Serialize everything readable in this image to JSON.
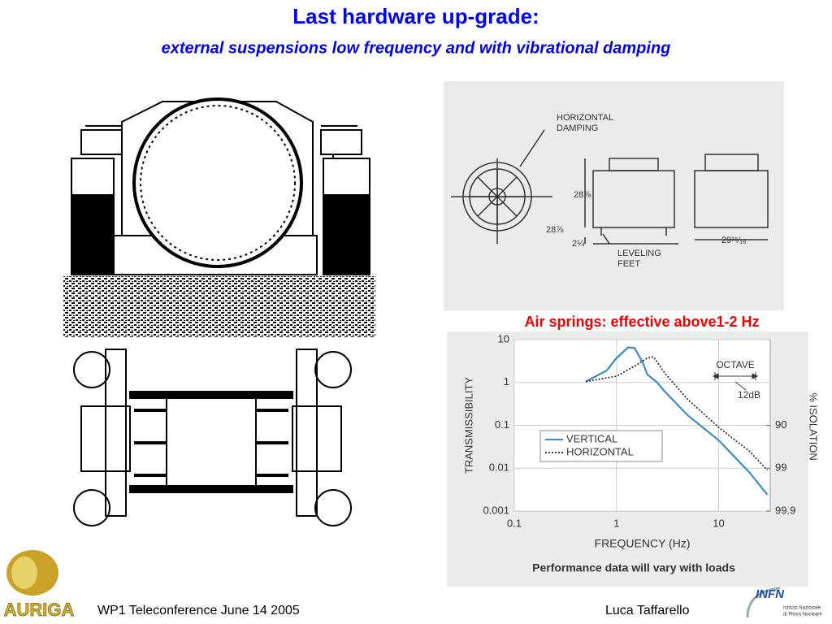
{
  "title": "Last hardware up-grade:",
  "subtitle": "external suspensions low frequency and with vibrational damping",
  "caption": "Air springs: effective above1-2 Hz",
  "diagram": {
    "labels": [
      "HORIZONTAL",
      "DAMPING",
      "28⅞",
      "28⅞",
      "2¼",
      "LEVELING",
      "FEET",
      "29¹⁵⁄₁₆"
    ]
  },
  "chart_data": {
    "type": "line",
    "xlabel": "FREQUENCY (Hz)",
    "ylabel": "TRANSMISSIBILITY",
    "y2label": "% ISOLATION",
    "note": "Performance data will vary with loads",
    "annotations": [
      "OCTAVE",
      "12dB"
    ],
    "xscale": "log",
    "yscale": "log",
    "grid": true,
    "legend": "center left",
    "xlim": [
      0.1,
      32
    ],
    "xticks": [
      0.1,
      1,
      10
    ],
    "ylim": [
      0.001,
      10
    ],
    "yticks": [
      0.001,
      0.01,
      0.1,
      1,
      10
    ],
    "y2ticks": [
      90,
      99,
      99.9
    ],
    "series": [
      {
        "name": "VERTICAL",
        "color": "#3b8cc4",
        "style": "solid",
        "x": [
          0.5,
          0.8,
          1,
          1.3,
          1.5,
          1.8,
          2,
          2.5,
          3,
          5,
          10,
          20,
          30
        ],
        "values": [
          1.05,
          1.9,
          3.7,
          6.6,
          6.4,
          3,
          1.55,
          1,
          0.6,
          0.17,
          0.045,
          0.008,
          0.0024
        ]
      },
      {
        "name": "HORIZONTAL",
        "color": "#333333",
        "style": "dotted",
        "x": [
          0.5,
          1,
          1.5,
          2,
          2.3,
          3,
          5,
          10,
          20,
          30
        ],
        "values": [
          1.05,
          1.4,
          2.4,
          3.7,
          4,
          1.6,
          0.4,
          0.09,
          0.025,
          0.009
        ]
      }
    ]
  },
  "footer": {
    "left": "WP1 Teleconference June 14 2005",
    "right": "Luca Taffarello",
    "logo_left": "AURIGA",
    "logo_right": "INFN",
    "institute": [
      "Istituto Nazionale",
      "di Fisica Nucleare"
    ]
  }
}
